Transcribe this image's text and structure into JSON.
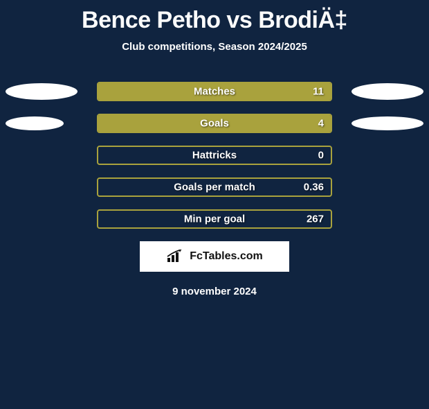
{
  "title": "Bence Petho vs BrodiÄ‡",
  "subtitle": "Club competitions, Season 2024/2025",
  "date": "9 november 2024",
  "logo": "FcTables.com",
  "background_color": "#102440",
  "bar_border_color": "#a9a23d",
  "bar_fill_color": "#a9a23d",
  "ellipse_color": "#ffffff",
  "rows": [
    {
      "label": "Matches",
      "value": "11",
      "fill_pct": 100,
      "left_ellipse": {
        "w": 104,
        "h": 24
      },
      "right_ellipse": {
        "w": 104,
        "h": 24
      }
    },
    {
      "label": "Goals",
      "value": "4",
      "fill_pct": 100,
      "left_ellipse": {
        "w": 84,
        "h": 20
      },
      "right_ellipse": {
        "w": 104,
        "h": 20
      }
    },
    {
      "label": "Hattricks",
      "value": "0",
      "fill_pct": 0,
      "left_ellipse": null,
      "right_ellipse": null
    },
    {
      "label": "Goals per match",
      "value": "0.36",
      "fill_pct": 0,
      "left_ellipse": null,
      "right_ellipse": null
    },
    {
      "label": "Min per goal",
      "value": "267",
      "fill_pct": 0,
      "left_ellipse": null,
      "right_ellipse": null
    }
  ]
}
